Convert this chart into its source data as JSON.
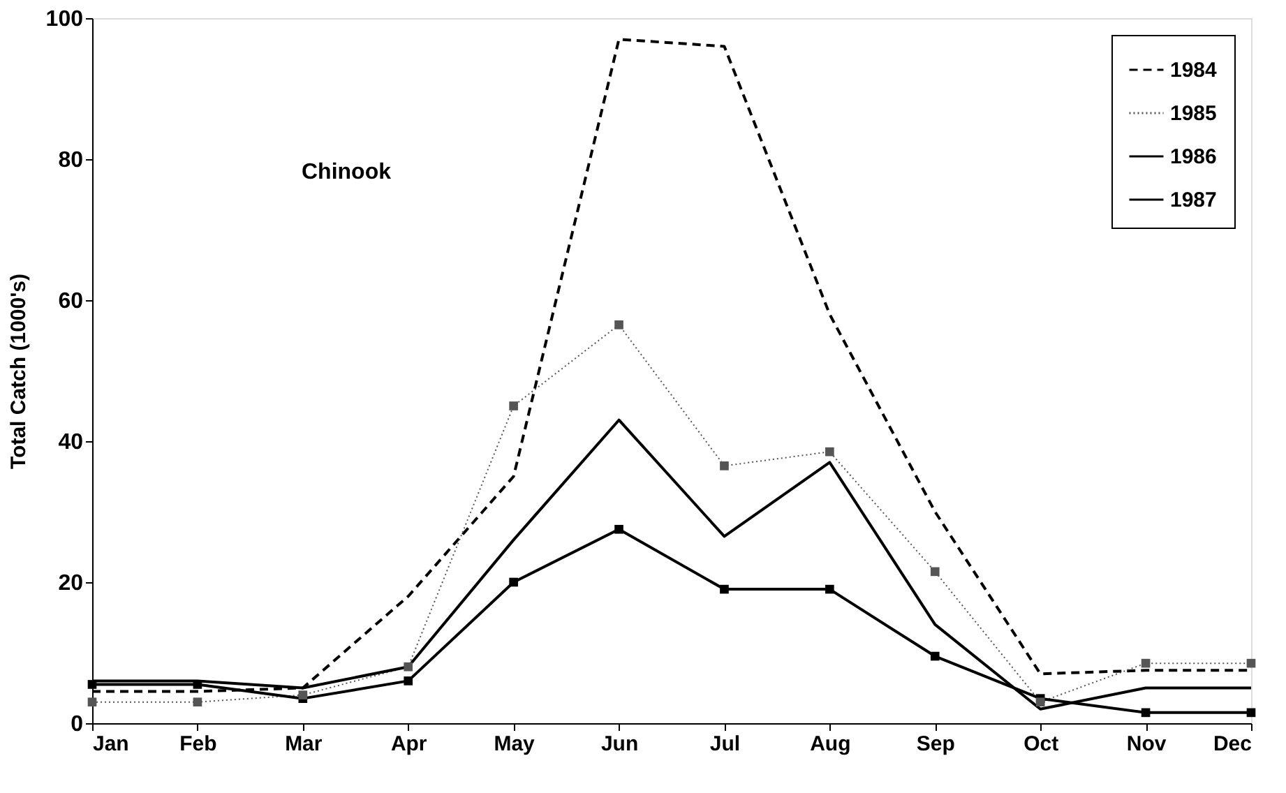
{
  "chart_data": {
    "type": "line",
    "ylabel": "Total Catch (1000's)",
    "annotations": [
      "Chinook"
    ],
    "categories": [
      "Jan",
      "Feb",
      "Mar",
      "Apr",
      "May",
      "Jun",
      "Jul",
      "Aug",
      "Sep",
      "Oct",
      "Nov",
      "Dec"
    ],
    "series": [
      {
        "name": "1984",
        "color": "#000000",
        "line_style": "dashed",
        "marker": "none",
        "values": [
          4.5,
          4.5,
          5,
          18,
          35,
          97,
          96,
          58,
          30,
          7,
          7.5,
          7.5
        ]
      },
      {
        "name": "1985",
        "color": "#555555",
        "line_style": "dotted",
        "marker": "square",
        "values": [
          3,
          3,
          4,
          8,
          45,
          56.5,
          36.5,
          38.5,
          21.5,
          3,
          8.5,
          8.5
        ]
      },
      {
        "name": "1986",
        "color": "#000000",
        "line_style": "solid",
        "marker": "none",
        "values": [
          6,
          6,
          5,
          8,
          26,
          43,
          26.5,
          37,
          14,
          2,
          5,
          5
        ]
      },
      {
        "name": "1987",
        "color": "#000000",
        "line_style": "solid",
        "marker": "square",
        "values": [
          5.5,
          5.5,
          3.5,
          6,
          20,
          27.5,
          19,
          19,
          9.5,
          3.5,
          1.5,
          1.5
        ]
      }
    ],
    "ylim": [
      0,
      100
    ],
    "yticks": [
      0,
      20,
      40,
      60,
      80,
      100
    ],
    "grid": false,
    "legend": "top right"
  }
}
